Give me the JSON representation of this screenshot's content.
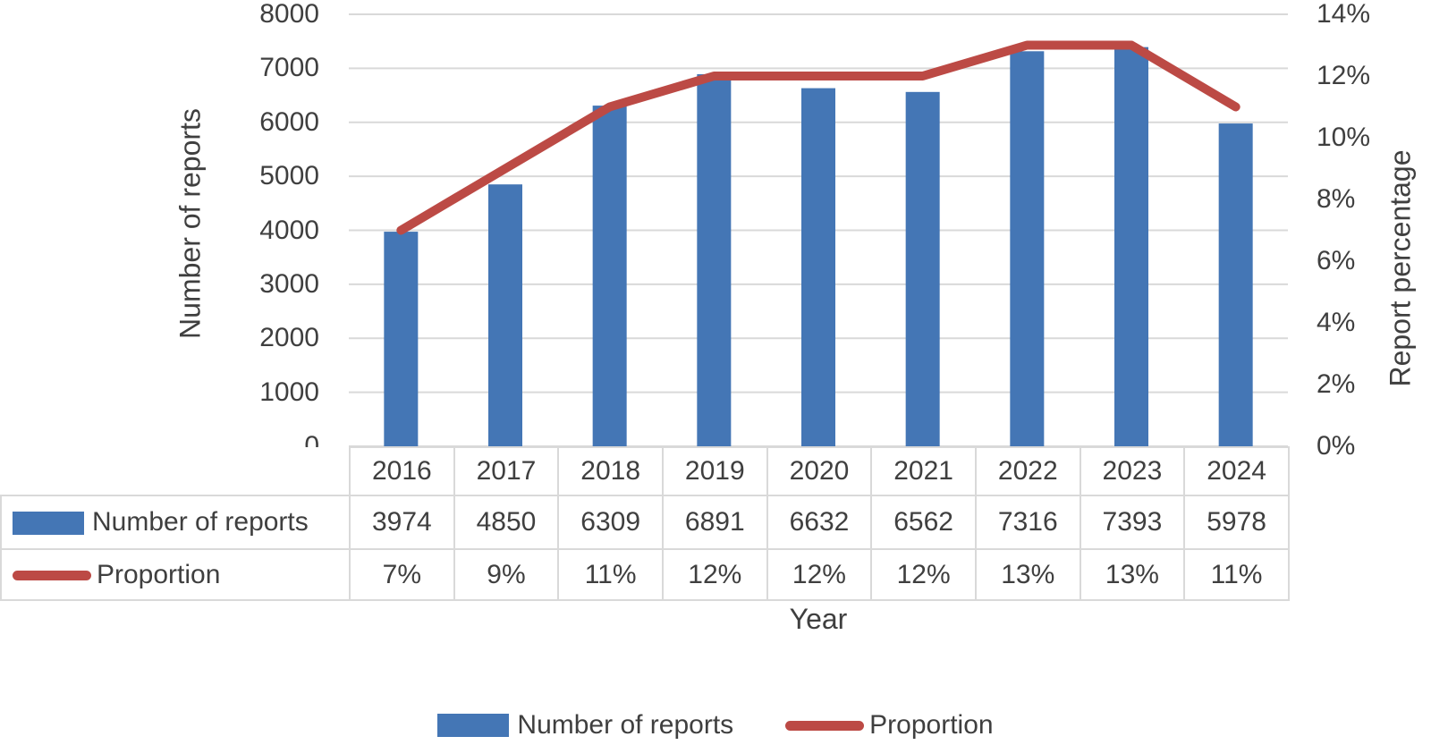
{
  "colors": {
    "bar_blue": "#4476b5",
    "line_red": "#bc4a45",
    "gridline": "#d9d9d9",
    "text": "#3f3f3f"
  },
  "chart_data": {
    "type": "combo",
    "title": "",
    "categories": [
      "2016",
      "2017",
      "2018",
      "2019",
      "2020",
      "2021",
      "2022",
      "2023",
      "2024"
    ],
    "series": [
      {
        "name": "Number of reports",
        "chart_type": "bar",
        "axis": "left",
        "color": "#4476b5",
        "values": [
          3974,
          4850,
          6309,
          6891,
          6632,
          6562,
          7316,
          7393,
          5978
        ]
      },
      {
        "name": "Proportion",
        "chart_type": "line",
        "axis": "right",
        "color": "#bc4a45",
        "values": [
          7,
          9,
          11,
          12,
          12,
          12,
          13,
          13,
          11
        ],
        "values_display": [
          "7%",
          "9%",
          "11%",
          "12%",
          "12%",
          "12%",
          "13%",
          "13%",
          "11%"
        ]
      }
    ],
    "left_axis": {
      "title": "Number of reports",
      "min": 0,
      "max": 8000,
      "step": 1000,
      "tick_labels": [
        "8000",
        "7000",
        "6000",
        "5000",
        "4000",
        "3000",
        "2000",
        "1000",
        "0"
      ]
    },
    "right_axis": {
      "title": "Report percentage",
      "min": 0,
      "max": 14,
      "step": 2,
      "tick_labels": [
        "14%",
        "12%",
        "10%",
        "8%",
        "6%",
        "4%",
        "2%",
        "0%"
      ]
    },
    "x_axis": {
      "title": "Year"
    },
    "grid": true,
    "legend_position": "bottom",
    "data_table_shown": true
  }
}
